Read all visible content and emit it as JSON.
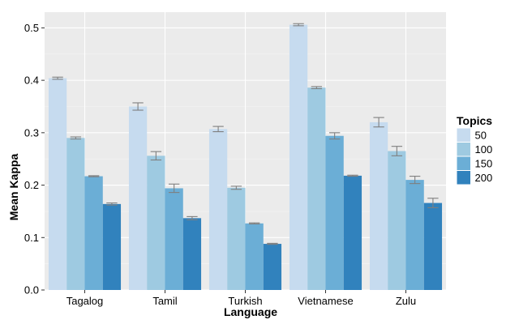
{
  "chart_data": {
    "type": "bar",
    "categories": [
      "Tagalog",
      "Tamil",
      "Turkish",
      "Vietnamese",
      "Zulu"
    ],
    "series": [
      {
        "name": "50",
        "color": "#c6dbef",
        "values": [
          0.404,
          0.35,
          0.307,
          0.506,
          0.32
        ],
        "errors": [
          0.002,
          0.007,
          0.005,
          0.002,
          0.009
        ]
      },
      {
        "name": "100",
        "color": "#9ecae1",
        "values": [
          0.29,
          0.256,
          0.195,
          0.386,
          0.265
        ],
        "errors": [
          0.002,
          0.008,
          0.003,
          0.002,
          0.009
        ]
      },
      {
        "name": "150",
        "color": "#6baed6",
        "values": [
          0.217,
          0.194,
          0.127,
          0.294,
          0.21
        ],
        "errors": [
          0.001,
          0.008,
          0.001,
          0.006,
          0.007
        ]
      },
      {
        "name": "200",
        "color": "#3182bd",
        "values": [
          0.164,
          0.137,
          0.088,
          0.218,
          0.166
        ],
        "errors": [
          0.002,
          0.003,
          0.001,
          0.001,
          0.009
        ]
      }
    ],
    "xlabel": "Language",
    "ylabel": "Mean Kappa",
    "ylim": [
      0,
      0.53
    ],
    "yticks": [
      "0.0",
      "0.1",
      "0.2",
      "0.3",
      "0.4",
      "0.5"
    ],
    "legend_title": "Topics",
    "legend_position": "right",
    "grid": true,
    "panel_color": "#ebebeb",
    "error_bar_color": "#7f7f7f"
  }
}
